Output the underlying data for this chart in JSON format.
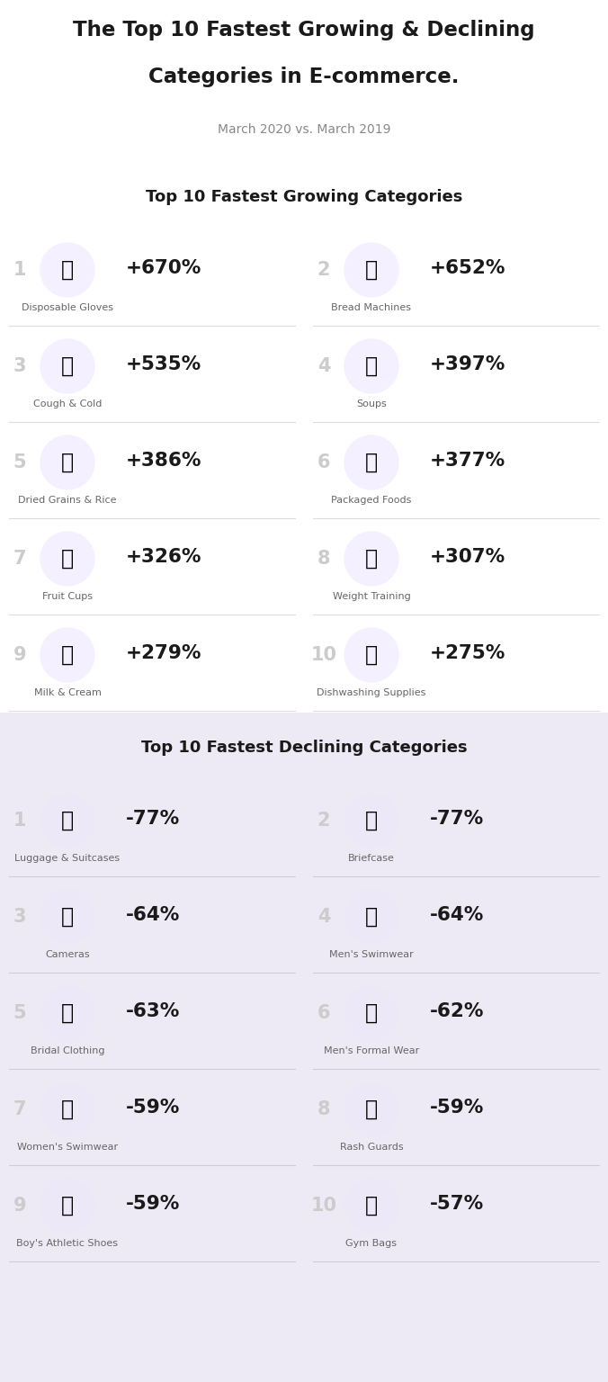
{
  "title_line1": "The Top 10 Fastest Growing & Declining",
  "title_line2": "Categories in E-commerce.",
  "subtitle": "March 2020 vs. March 2019",
  "growing_section_title": "Top 10 Fastest Growing Categories",
  "declining_section_title": "Top 10 Fastest Declining Categories",
  "growing": [
    {
      "rank": "1",
      "name": "Disposable Gloves",
      "value": "+670%",
      "col": 0
    },
    {
      "rank": "2",
      "name": "Bread Machines",
      "value": "+652%",
      "col": 1
    },
    {
      "rank": "3",
      "name": "Cough & Cold",
      "value": "+535%",
      "col": 0
    },
    {
      "rank": "4",
      "name": "Soups",
      "value": "+397%",
      "col": 1
    },
    {
      "rank": "5",
      "name": "Dried Grains & Rice",
      "value": "+386%",
      "col": 0
    },
    {
      "rank": "6",
      "name": "Packaged Foods",
      "value": "+377%",
      "col": 1
    },
    {
      "rank": "7",
      "name": "Fruit Cups",
      "value": "+326%",
      "col": 0
    },
    {
      "rank": "8",
      "name": "Weight Training",
      "value": "+307%",
      "col": 1
    },
    {
      "rank": "9",
      "name": "Milk & Cream",
      "value": "+279%",
      "col": 0
    },
    {
      "rank": "10",
      "name": "Dishwashing Supplies",
      "value": "+275%",
      "col": 1
    }
  ],
  "declining": [
    {
      "rank": "1",
      "name": "Luggage & Suitcases",
      "value": "-77%",
      "col": 0
    },
    {
      "rank": "2",
      "name": "Briefcase",
      "value": "-77%",
      "col": 1
    },
    {
      "rank": "3",
      "name": "Cameras",
      "value": "-64%",
      "col": 0
    },
    {
      "rank": "4",
      "name": "Men's Swimwear",
      "value": "-64%",
      "col": 1
    },
    {
      "rank": "5",
      "name": "Bridal Clothing",
      "value": "-63%",
      "col": 0
    },
    {
      "rank": "6",
      "name": "Men's Formal Wear",
      "value": "-62%",
      "col": 1
    },
    {
      "rank": "7",
      "name": "Women's Swimwear",
      "value": "-59%",
      "col": 0
    },
    {
      "rank": "8",
      "name": "Rash Guards",
      "value": "-59%",
      "col": 1
    },
    {
      "rank": "9",
      "name": "Boy's Athletic Shoes",
      "value": "-59%",
      "col": 0
    },
    {
      "rank": "10",
      "name": "Gym Bags",
      "value": "-57%",
      "col": 1
    }
  ],
  "bg_white": "#ffffff",
  "bg_lavender": "#eeeaf5",
  "title_color": "#1a1a1a",
  "subtitle_color": "#888888",
  "rank_color": "#cccccc",
  "name_color": "#666666",
  "value_color": "#1a1a1a",
  "section_title_color": "#1a1a1a",
  "line_color": "#dddddd",
  "line_color_decl": "#d0cce0",
  "icon_bg_grow": "#f5f0ff",
  "icon_bg_decl": "#ede8f7"
}
